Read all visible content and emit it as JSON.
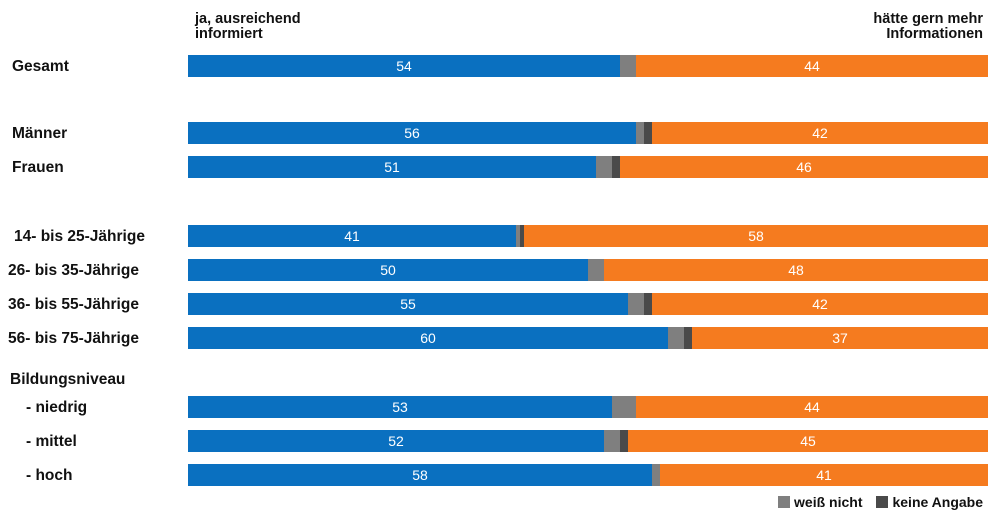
{
  "chart_data": {
    "type": "bar",
    "orientation": "horizontal",
    "stacked": true,
    "header_left_line1": "ja, ausreichend",
    "header_left_line2": "informiert",
    "header_right_line1": "hätte gern mehr",
    "header_right_line2": "Informationen",
    "group_label_education": "Bildungsniveau",
    "categories": [
      "Gesamt",
      "Männer",
      "Frauen",
      "14- bis 25-Jährige",
      "26- bis 35-Jährige",
      "36- bis 55-Jährige",
      "56- bis 75-Jährige",
      "- niedrig",
      "- mittel",
      "- hoch"
    ],
    "series": [
      {
        "name": "ja, ausreichend informiert",
        "color": "#0a70c0",
        "values": [
          54,
          56,
          51,
          41,
          50,
          55,
          60,
          53,
          52,
          58
        ]
      },
      {
        "name": "weiß nicht",
        "color": "#7f7f7f",
        "values": [
          2,
          1,
          2,
          0.5,
          2,
          2,
          2,
          3,
          2,
          1
        ]
      },
      {
        "name": "keine Angabe",
        "color": "#4a4a4a",
        "values": [
          0,
          1,
          1,
          0.5,
          0,
          1,
          1,
          0,
          1,
          0
        ]
      },
      {
        "name": "hätte gern mehr Informationen",
        "color": "#f57b1f",
        "values": [
          44,
          42,
          46,
          58,
          48,
          42,
          37,
          44,
          45,
          41
        ]
      }
    ],
    "legend": {
      "position": "bottom-right",
      "items": [
        {
          "label": "weiß nicht",
          "color": "#7f7f7f"
        },
        {
          "label": "keine Angabe",
          "color": "#4a4a4a"
        }
      ]
    },
    "xlim": [
      0,
      100
    ],
    "grid": false
  }
}
